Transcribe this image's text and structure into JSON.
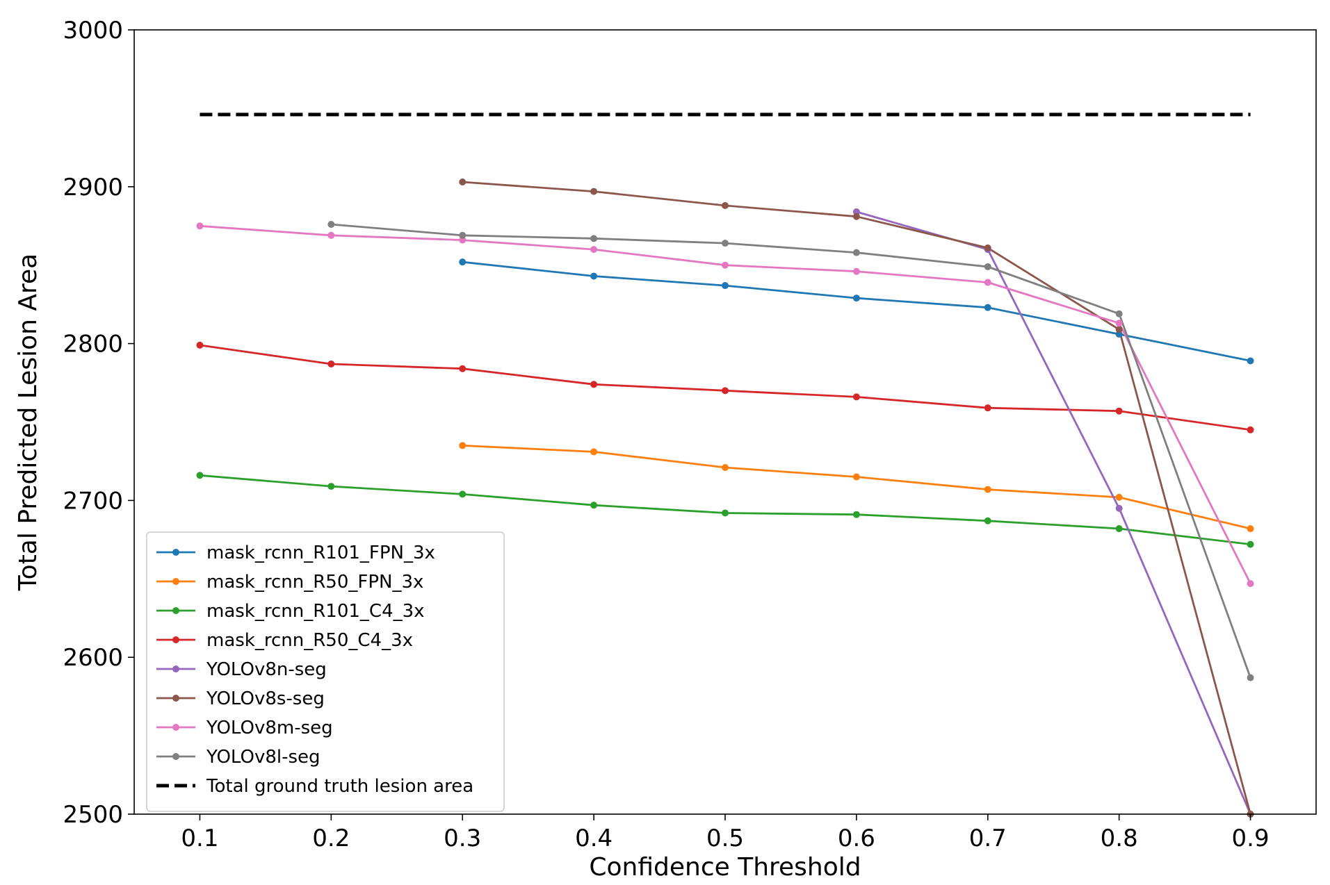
{
  "chart_data": {
    "type": "line",
    "title": "",
    "xlabel": "Confidence Threshold",
    "ylabel": "Total Predicted Lesion Area",
    "xlim": [
      0.05,
      0.95
    ],
    "ylim": [
      2500,
      3000
    ],
    "xticks": [
      "0.1",
      "0.2",
      "0.3",
      "0.4",
      "0.5",
      "0.6",
      "0.7",
      "0.8",
      "0.9"
    ],
    "yticks": [
      "2500",
      "2600",
      "2700",
      "2800",
      "2900",
      "3000"
    ],
    "grid": false,
    "legend_position": "lower-left",
    "series": [
      {
        "name": "mask_rcnn_R101_FPN_3x",
        "color": "#1f77b4",
        "marker": "dot",
        "x": [
          0.3,
          0.4,
          0.5,
          0.6,
          0.7,
          0.8,
          0.9
        ],
        "y": [
          2852,
          2843,
          2837,
          2829,
          2823,
          2806,
          2789
        ]
      },
      {
        "name": "mask_rcnn_R50_FPN_3x",
        "color": "#ff7f0e",
        "marker": "dot",
        "x": [
          0.3,
          0.4,
          0.5,
          0.6,
          0.7,
          0.8,
          0.9
        ],
        "y": [
          2735,
          2731,
          2721,
          2715,
          2707,
          2702,
          2682
        ]
      },
      {
        "name": "mask_rcnn_R101_C4_3x",
        "color": "#2ca02c",
        "marker": "dot",
        "x": [
          0.1,
          0.2,
          0.3,
          0.4,
          0.5,
          0.6,
          0.7,
          0.8,
          0.9
        ],
        "y": [
          2716,
          2709,
          2704,
          2697,
          2692,
          2691,
          2687,
          2682,
          2672
        ]
      },
      {
        "name": "mask_rcnn_R50_C4_3x",
        "color": "#d62728",
        "marker": "dot",
        "x": [
          0.1,
          0.2,
          0.3,
          0.4,
          0.5,
          0.6,
          0.7,
          0.8,
          0.9
        ],
        "y": [
          2799,
          2787,
          2784,
          2774,
          2770,
          2766,
          2759,
          2757,
          2745
        ]
      },
      {
        "name": "YOLOv8n-seg",
        "color": "#9467bd",
        "marker": "dot",
        "x": [
          0.6,
          0.7,
          0.8,
          0.9
        ],
        "y": [
          2884,
          2860,
          2695,
          2500
        ]
      },
      {
        "name": "YOLOv8s-seg",
        "color": "#8c564b",
        "marker": "dot",
        "x": [
          0.3,
          0.4,
          0.5,
          0.6,
          0.7,
          0.8,
          0.9
        ],
        "y": [
          2903,
          2897,
          2888,
          2881,
          2861,
          2809,
          2500
        ]
      },
      {
        "name": "YOLOv8m-seg",
        "color": "#e377c2",
        "marker": "dot",
        "x": [
          0.1,
          0.2,
          0.3,
          0.4,
          0.5,
          0.6,
          0.7,
          0.8,
          0.9
        ],
        "y": [
          2875,
          2869,
          2866,
          2860,
          2850,
          2846,
          2839,
          2813,
          2647
        ]
      },
      {
        "name": "YOLOv8l-seg",
        "color": "#7f7f7f",
        "marker": "dot",
        "x": [
          0.2,
          0.3,
          0.4,
          0.5,
          0.6,
          0.7,
          0.8,
          0.9
        ],
        "y": [
          2876,
          2869,
          2867,
          2864,
          2858,
          2849,
          2819,
          2587
        ]
      },
      {
        "name": "Total ground truth lesion area",
        "color": "#000000",
        "marker": "none",
        "dashed": true,
        "x": [
          0.1,
          0.9
        ],
        "y": [
          2946,
          2946
        ]
      }
    ]
  }
}
